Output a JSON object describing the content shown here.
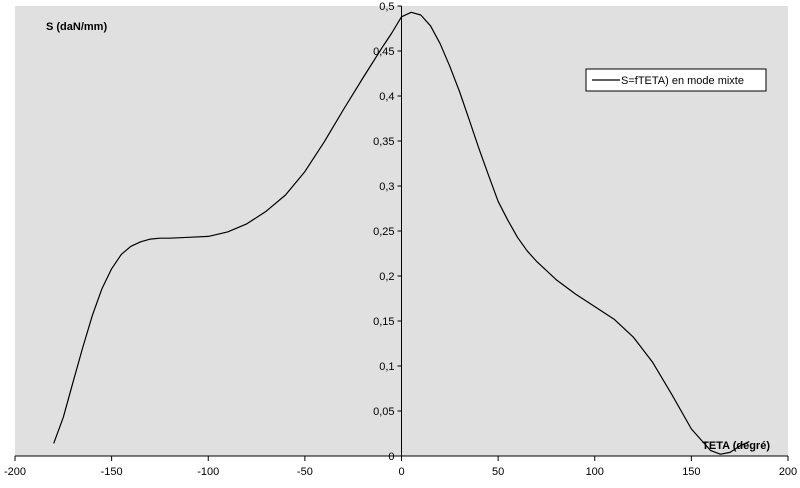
{
  "chart_data": {
    "type": "line",
    "xlabel": "TETA (degré)",
    "ylabel": "S (daN/mm)",
    "xlim": [
      -200,
      200
    ],
    "ylim": [
      0,
      0.5
    ],
    "x_ticks": [
      -200,
      -150,
      -100,
      -50,
      0,
      50,
      100,
      150,
      200
    ],
    "x_tick_labels": [
      "-200",
      "-150",
      "-100",
      "-50",
      "0",
      "50",
      "100",
      "150",
      "200"
    ],
    "y_ticks": [
      0,
      0.05,
      0.1,
      0.15,
      0.2,
      0.25,
      0.3,
      0.35,
      0.4,
      0.45,
      0.5
    ],
    "y_tick_labels": [
      "0",
      "0,05",
      "0,1",
      "0,15",
      "0,2",
      "0,25",
      "0,3",
      "0,35",
      "0,4",
      "0,45",
      "0,5"
    ],
    "grid": false,
    "legend_position": "top-right",
    "plot_background": "#e0e0e0",
    "line_color": "#000000",
    "series": [
      {
        "name": "S=fTETA) en mode mixte",
        "x": [
          -180,
          -175,
          -170,
          -165,
          -160,
          -155,
          -150,
          -145,
          -140,
          -135,
          -130,
          -125,
          -120,
          -110,
          -100,
          -90,
          -80,
          -70,
          -60,
          -50,
          -40,
          -30,
          -20,
          -10,
          -5,
          0,
          5,
          10,
          15,
          20,
          25,
          30,
          35,
          40,
          45,
          50,
          55,
          60,
          65,
          70,
          80,
          90,
          100,
          110,
          120,
          130,
          140,
          150,
          160,
          165,
          170,
          175,
          180
        ],
        "y": [
          0.014,
          0.043,
          0.082,
          0.12,
          0.156,
          0.186,
          0.208,
          0.224,
          0.233,
          0.238,
          0.241,
          0.242,
          0.242,
          0.243,
          0.244,
          0.249,
          0.258,
          0.272,
          0.29,
          0.316,
          0.349,
          0.385,
          0.42,
          0.454,
          0.47,
          0.488,
          0.493,
          0.49,
          0.478,
          0.458,
          0.433,
          0.405,
          0.374,
          0.342,
          0.312,
          0.283,
          0.262,
          0.243,
          0.228,
          0.216,
          0.196,
          0.18,
          0.166,
          0.152,
          0.132,
          0.104,
          0.068,
          0.03,
          0.006,
          0.002,
          0.004,
          0.011,
          0.016
        ]
      }
    ]
  }
}
